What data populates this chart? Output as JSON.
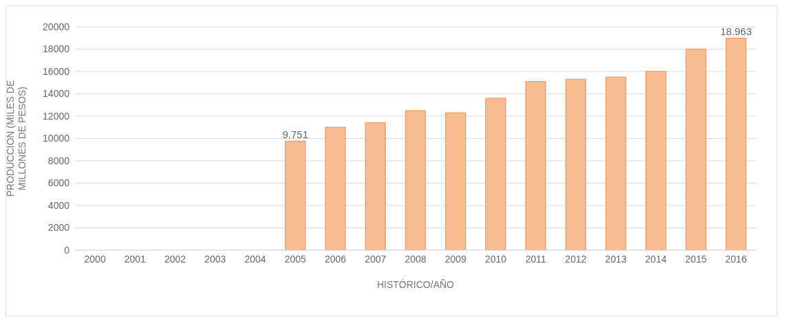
{
  "chart_data": {
    "type": "bar",
    "xlabel": "HISTÓRICO/AÑO",
    "ylabel": "PRODUCCIÓN (MILES DE MILLONES DE PESOS)",
    "categories": [
      "2000",
      "2001",
      "2002",
      "2003",
      "2004",
      "2005",
      "2006",
      "2007",
      "2008",
      "2009",
      "2010",
      "2011",
      "2012",
      "2013",
      "2014",
      "2015",
      "2016"
    ],
    "values": [
      null,
      null,
      null,
      null,
      null,
      9751,
      11000,
      11400,
      12500,
      12300,
      13600,
      15100,
      15300,
      15500,
      16000,
      18000,
      18963
    ],
    "value_labels": [
      null,
      null,
      null,
      null,
      null,
      "9.751",
      null,
      null,
      null,
      null,
      null,
      null,
      null,
      null,
      null,
      null,
      "18.963"
    ],
    "color": "#f9bb91",
    "ylim": [
      0,
      20000
    ],
    "yticks": [
      0,
      2000,
      4000,
      6000,
      8000,
      10000,
      12000,
      14000,
      16000,
      18000,
      20000
    ],
    "grid": "y"
  }
}
